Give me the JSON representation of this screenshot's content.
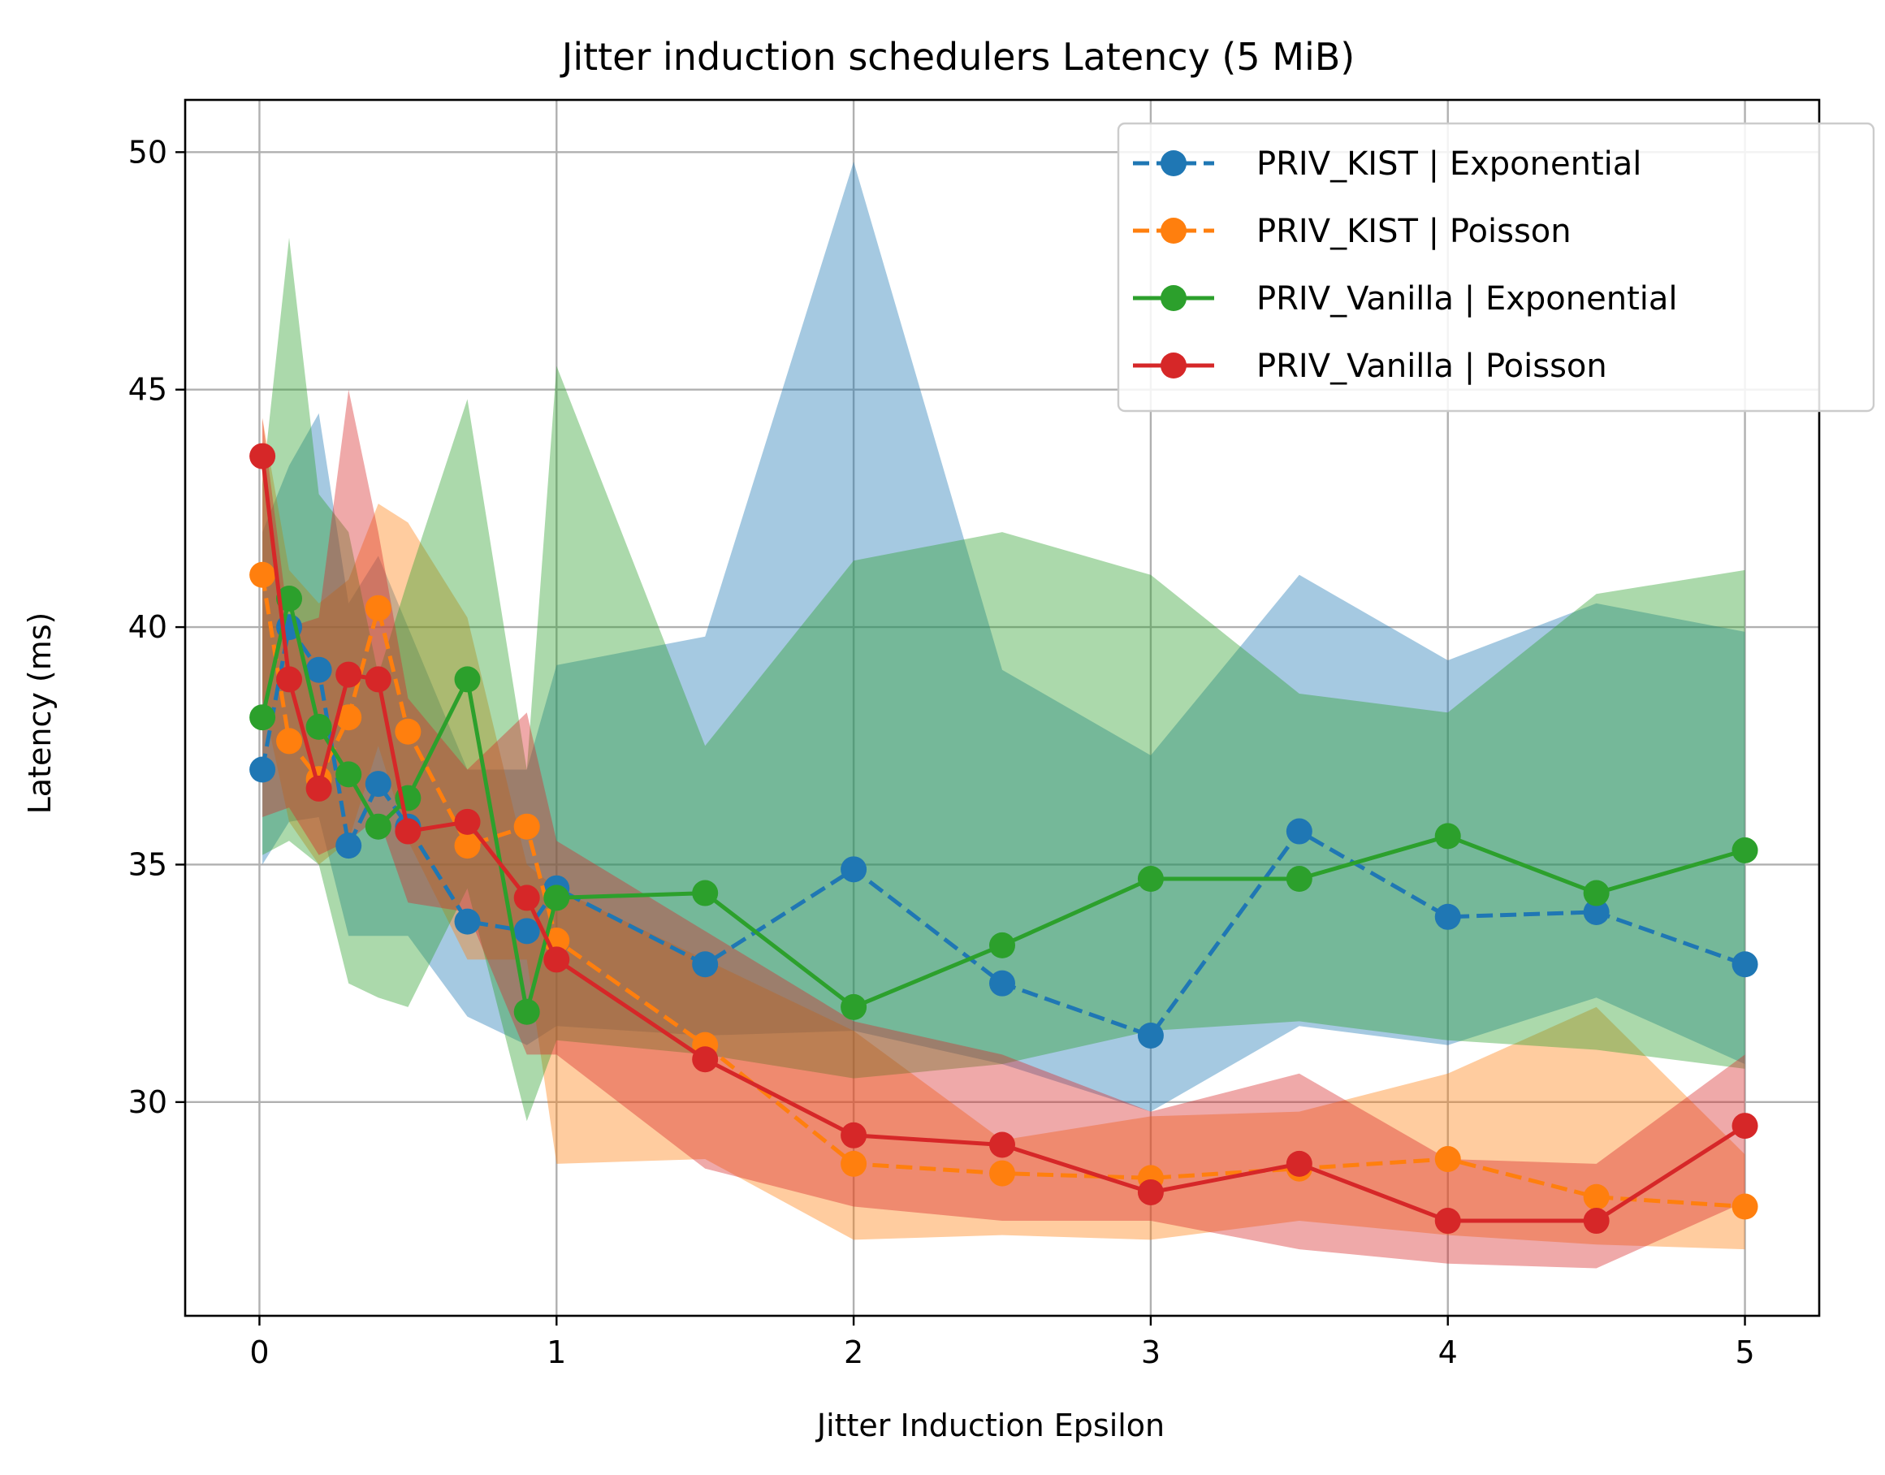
{
  "chart_data": {
    "type": "line",
    "title": "Jitter induction schedulers Latency (5 MiB)",
    "xlabel": "Jitter Induction Epsilon",
    "ylabel": "Latency (ms)",
    "xlim": [
      -0.25,
      5.25
    ],
    "ylim": [
      25.5,
      51.1
    ],
    "x_ticks": [
      0,
      1,
      2,
      3,
      4,
      5
    ],
    "y_ticks": [
      30,
      35,
      40,
      45,
      50
    ],
    "x_tick_labels": [
      "0",
      "1",
      "2",
      "3",
      "4",
      "5"
    ],
    "y_tick_labels": [
      "30",
      "35",
      "40",
      "45",
      "50"
    ],
    "grid": true,
    "legend_position": "top-right",
    "x": [
      0.01,
      0.1,
      0.2,
      0.3,
      0.4,
      0.5,
      0.7,
      0.9,
      1.0,
      1.5,
      2.0,
      2.5,
      3.0,
      3.5,
      4.0,
      4.5,
      5.0
    ],
    "series": [
      {
        "name": "PRIV_KIST | Exponential",
        "color": "#1f77b4",
        "dash": true,
        "values": [
          37.0,
          40.0,
          39.1,
          35.4,
          36.7,
          35.8,
          33.8,
          33.6,
          34.5,
          32.9,
          34.9,
          32.5,
          31.4,
          35.7,
          33.9,
          34.0,
          32.9
        ],
        "lower": [
          35.0,
          35.9,
          36.0,
          33.5,
          33.5,
          33.5,
          31.8,
          31.2,
          31.6,
          31.4,
          31.5,
          30.8,
          29.8,
          31.6,
          31.2,
          32.2,
          30.8
        ],
        "upper": [
          42.0,
          43.4,
          44.5,
          40.5,
          41.5,
          40.0,
          37.0,
          37.0,
          39.2,
          39.8,
          49.8,
          39.1,
          37.3,
          41.1,
          39.3,
          40.5,
          39.9
        ]
      },
      {
        "name": "PRIV_KIST | Poisson",
        "color": "#ff7f0e",
        "dash": true,
        "values": [
          41.1,
          37.6,
          36.8,
          38.1,
          40.4,
          37.8,
          35.4,
          35.8,
          33.4,
          31.2,
          28.7,
          28.5,
          28.4,
          28.6,
          28.8,
          28.0,
          27.8
        ],
        "lower": [
          38.5,
          35.9,
          35.0,
          35.5,
          37.5,
          35.5,
          33.0,
          33.0,
          28.7,
          28.8,
          27.1,
          27.2,
          27.1,
          27.5,
          27.2,
          27.0,
          26.9
        ],
        "upper": [
          44.4,
          41.2,
          40.5,
          41.0,
          42.6,
          42.2,
          40.2,
          35.0,
          34.5,
          33.0,
          31.5,
          29.2,
          29.7,
          29.8,
          30.6,
          32.0,
          28.9
        ]
      },
      {
        "name": "PRIV_Vanilla | Exponential",
        "color": "#2ca02c",
        "dash": false,
        "values": [
          38.1,
          40.6,
          37.9,
          36.9,
          35.8,
          36.4,
          38.9,
          31.9,
          34.3,
          34.4,
          32.0,
          33.3,
          34.7,
          34.7,
          35.6,
          34.4,
          35.3
        ],
        "lower": [
          35.2,
          35.5,
          35.0,
          32.5,
          32.2,
          32.0,
          34.5,
          29.6,
          31.3,
          31.0,
          30.5,
          30.8,
          31.5,
          31.7,
          31.3,
          31.1,
          30.7
        ],
        "upper": [
          43.0,
          48.2,
          42.8,
          42.0,
          39.0,
          41.0,
          44.8,
          37.0,
          45.5,
          37.5,
          41.4,
          42.0,
          41.1,
          38.6,
          38.2,
          40.7,
          41.2
        ]
      },
      {
        "name": "PRIV_Vanilla | Poisson",
        "color": "#d62728",
        "dash": false,
        "values": [
          43.6,
          38.9,
          36.6,
          39.0,
          38.9,
          35.7,
          35.9,
          34.3,
          33.0,
          30.9,
          29.3,
          29.1,
          28.1,
          28.7,
          27.5,
          27.5,
          29.5
        ],
        "lower": [
          36.0,
          36.2,
          35.2,
          35.5,
          36.0,
          34.2,
          34.0,
          31.0,
          31.0,
          28.6,
          27.8,
          27.5,
          27.5,
          26.9,
          26.6,
          26.5,
          27.9
        ],
        "upper": [
          44.4,
          40.0,
          40.2,
          45.0,
          42.0,
          38.5,
          37.0,
          38.2,
          35.5,
          33.6,
          31.7,
          31.0,
          29.8,
          30.6,
          28.8,
          28.7,
          31.0
        ]
      }
    ]
  }
}
